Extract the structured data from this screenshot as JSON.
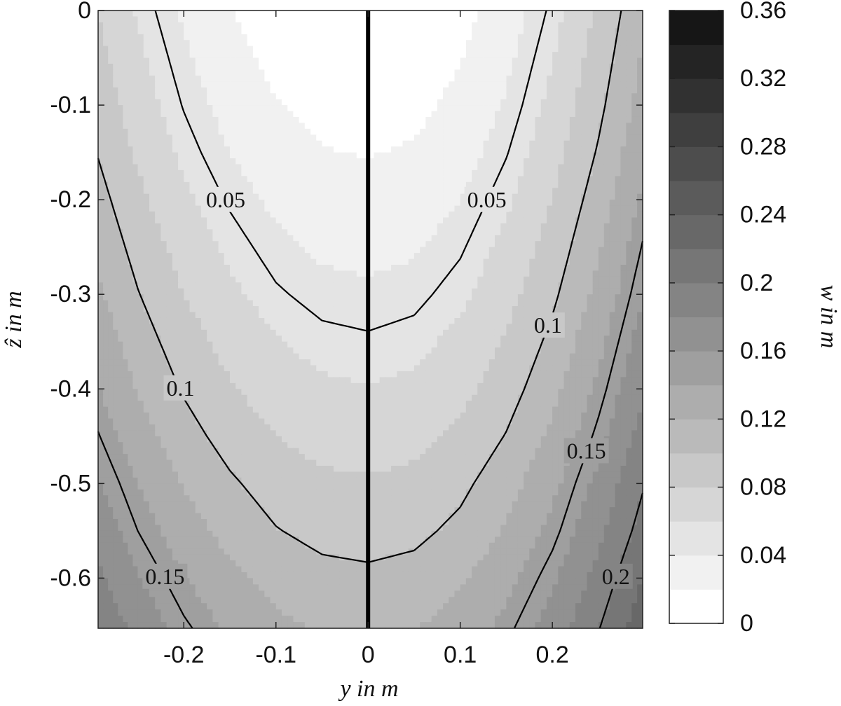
{
  "chart_data": {
    "type": "contourf",
    "xlabel": "y in m",
    "ylabel": "ẑ in m",
    "colorbar_label": "w in m",
    "xlim": [
      -0.293,
      0.298
    ],
    "ylim": [
      -0.653,
      0
    ],
    "xticks": [
      -0.2,
      -0.1,
      0,
      0.1,
      0.2
    ],
    "yticks": [
      0,
      -0.1,
      -0.2,
      -0.3,
      -0.4,
      -0.5,
      -0.6
    ],
    "x": [
      -0.293,
      -0.25,
      -0.2,
      -0.15,
      -0.1,
      -0.05,
      0,
      0.05,
      0.1,
      0.15,
      0.2,
      0.25,
      0.298
    ],
    "y": [
      0,
      -0.05,
      -0.1,
      -0.15,
      -0.2,
      -0.25,
      -0.3,
      -0.35,
      -0.4,
      -0.45,
      -0.5,
      -0.55,
      -0.6,
      -0.653
    ],
    "z": [
      [
        0.08,
        0.058,
        0.037,
        0.021,
        0.009,
        0.002,
        0,
        0.003,
        0.013,
        0.03,
        0.053,
        0.083,
        0.116
      ],
      [
        0.086,
        0.064,
        0.043,
        0.027,
        0.015,
        0.008,
        0.006,
        0.009,
        0.019,
        0.036,
        0.059,
        0.089,
        0.122
      ],
      [
        0.092,
        0.07,
        0.049,
        0.033,
        0.021,
        0.014,
        0.012,
        0.015,
        0.025,
        0.042,
        0.065,
        0.095,
        0.128
      ],
      [
        0.099,
        0.077,
        0.056,
        0.04,
        0.028,
        0.021,
        0.019,
        0.022,
        0.032,
        0.049,
        0.072,
        0.102,
        0.135
      ],
      [
        0.107,
        0.085,
        0.064,
        0.048,
        0.036,
        0.029,
        0.027,
        0.03,
        0.04,
        0.057,
        0.08,
        0.11,
        0.143
      ],
      [
        0.115,
        0.093,
        0.072,
        0.056,
        0.044,
        0.037,
        0.035,
        0.038,
        0.048,
        0.065,
        0.088,
        0.118,
        0.151
      ],
      [
        0.123,
        0.101,
        0.08,
        0.064,
        0.052,
        0.045,
        0.043,
        0.046,
        0.056,
        0.073,
        0.096,
        0.126,
        0.159
      ],
      [
        0.132,
        0.11,
        0.089,
        0.073,
        0.061,
        0.054,
        0.052,
        0.055,
        0.065,
        0.082,
        0.105,
        0.135,
        0.168
      ],
      [
        0.141,
        0.119,
        0.098,
        0.082,
        0.07,
        0.063,
        0.061,
        0.064,
        0.074,
        0.091,
        0.114,
        0.144,
        0.177
      ],
      [
        0.151,
        0.129,
        0.108,
        0.092,
        0.08,
        0.073,
        0.071,
        0.074,
        0.084,
        0.101,
        0.124,
        0.154,
        0.187
      ],
      [
        0.162,
        0.14,
        0.119,
        0.103,
        0.091,
        0.084,
        0.082,
        0.085,
        0.095,
        0.112,
        0.135,
        0.165,
        0.198
      ],
      [
        0.172,
        0.15,
        0.129,
        0.113,
        0.101,
        0.094,
        0.092,
        0.095,
        0.105,
        0.122,
        0.145,
        0.175,
        0.208
      ],
      [
        0.184,
        0.162,
        0.141,
        0.125,
        0.113,
        0.106,
        0.104,
        0.107,
        0.117,
        0.134,
        0.157,
        0.187,
        0.22
      ],
      [
        0.196,
        0.174,
        0.153,
        0.137,
        0.125,
        0.118,
        0.116,
        0.119,
        0.129,
        0.146,
        0.169,
        0.199,
        0.232
      ]
    ],
    "levels": [
      0,
      0.02,
      0.04,
      0.06,
      0.08,
      0.1,
      0.12,
      0.14,
      0.16,
      0.18,
      0.2,
      0.22,
      0.24,
      0.26,
      0.28,
      0.3,
      0.32,
      0.34,
      0.36
    ],
    "colormap": [
      "#ffffff",
      "#161616"
    ],
    "contour_levels": [
      0.05,
      0.1,
      0.15,
      0.2
    ],
    "cbticks": [
      0,
      0.04,
      0.08,
      0.12,
      0.16,
      0.2,
      0.24,
      0.28,
      0.32,
      0.36
    ]
  }
}
